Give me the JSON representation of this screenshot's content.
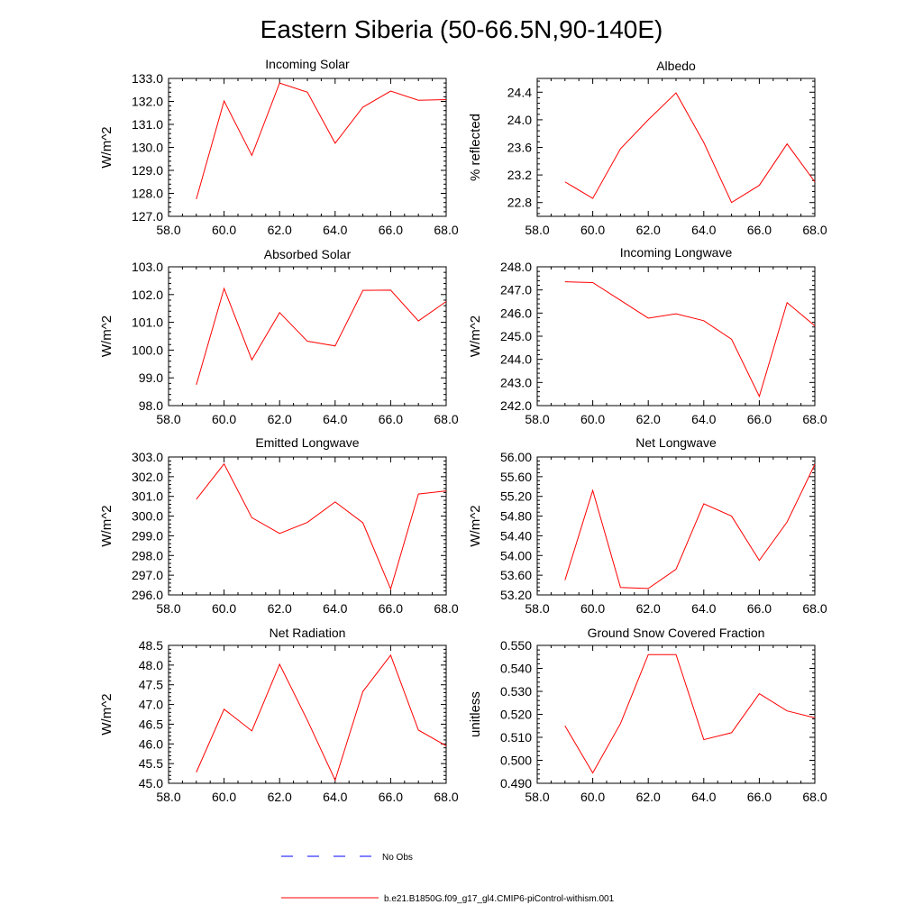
{
  "figure": {
    "title": "Eastern Siberia (50-66.5N,90-140E)"
  },
  "legend": {
    "entries": [
      {
        "label": "No Obs",
        "color": "#0000ff",
        "style": "dashed"
      },
      {
        "label": "b.e21.B1850G.f09_g17_gl4.CMIP6-piControl-withism.001",
        "color": "#ff0000",
        "style": "solid"
      }
    ]
  },
  "chart_data": [
    {
      "type": "line",
      "title": "Incoming Solar",
      "xlabel": "",
      "ylabel": "W/m^2",
      "xlim": [
        58,
        68
      ],
      "ylim": [
        127,
        133
      ],
      "xticks": [
        58,
        60,
        62,
        64,
        66,
        68
      ],
      "xtick_labels": [
        "58.0",
        "60.0",
        "62.0",
        "64.0",
        "66.0",
        "68.0"
      ],
      "yticks": [
        127,
        128,
        129,
        130,
        131,
        132,
        133
      ],
      "ytick_labels": [
        "127.0",
        "128.0",
        "129.0",
        "130.0",
        "131.0",
        "132.0",
        "133.0"
      ],
      "x": [
        59,
        60,
        61,
        62,
        63,
        64,
        65,
        66,
        67,
        68
      ],
      "series": [
        {
          "name": "b.e21.B1850G.f09_g17_gl4.CMIP6-piControl-withism.001",
          "color": "#ff0000",
          "values": [
            127.75,
            132.02,
            129.65,
            132.8,
            132.4,
            130.18,
            131.75,
            132.45,
            132.05,
            132.08
          ]
        }
      ]
    },
    {
      "type": "line",
      "title": "Albedo",
      "xlabel": "",
      "ylabel": "% reflected",
      "xlim": [
        58,
        68
      ],
      "ylim": [
        22.6,
        24.6
      ],
      "xticks": [
        58,
        60,
        62,
        64,
        66,
        68
      ],
      "xtick_labels": [
        "58.0",
        "60.0",
        "62.0",
        "64.0",
        "66.0",
        "68.0"
      ],
      "yticks": [
        22.8,
        23.2,
        23.6,
        24.0,
        24.4
      ],
      "ytick_labels": [
        "22.8",
        "23.2",
        "23.6",
        "24.0",
        "24.4"
      ],
      "x": [
        59,
        60,
        61,
        62,
        63,
        64,
        65,
        66,
        67,
        68
      ],
      "series": [
        {
          "name": "b.e21.B1850G.f09_g17_gl4.CMIP6-piControl-withism.001",
          "color": "#ff0000",
          "values": [
            23.1,
            22.86,
            23.58,
            24.0,
            24.39,
            23.67,
            22.8,
            23.05,
            23.65,
            23.1
          ]
        }
      ]
    },
    {
      "type": "line",
      "title": "Absorbed Solar",
      "xlabel": "",
      "ylabel": "W/m^2",
      "xlim": [
        58,
        68
      ],
      "ylim": [
        98,
        103
      ],
      "xticks": [
        58,
        60,
        62,
        64,
        66,
        68
      ],
      "xtick_labels": [
        "58.0",
        "60.0",
        "62.0",
        "64.0",
        "66.0",
        "68.0"
      ],
      "yticks": [
        98,
        99,
        100,
        101,
        102,
        103
      ],
      "ytick_labels": [
        "98.0",
        "99.0",
        "100.0",
        "101.0",
        "102.0",
        "103.0"
      ],
      "x": [
        59,
        60,
        61,
        62,
        63,
        64,
        65,
        66,
        67,
        68
      ],
      "series": [
        {
          "name": "b.e21.B1850G.f09_g17_gl4.CMIP6-piControl-withism.001",
          "color": "#ff0000",
          "values": [
            98.75,
            102.22,
            99.65,
            101.35,
            100.32,
            100.15,
            102.15,
            102.16,
            101.05,
            101.75
          ]
        }
      ]
    },
    {
      "type": "line",
      "title": "Incoming Longwave",
      "xlabel": "",
      "ylabel": "W/m^2",
      "xlim": [
        58,
        68
      ],
      "ylim": [
        242,
        248
      ],
      "xticks": [
        58,
        60,
        62,
        64,
        66,
        68
      ],
      "xtick_labels": [
        "58.0",
        "60.0",
        "62.0",
        "64.0",
        "66.0",
        "68.0"
      ],
      "yticks": [
        242,
        243,
        244,
        245,
        246,
        247,
        248
      ],
      "ytick_labels": [
        "242.0",
        "243.0",
        "244.0",
        "245.0",
        "246.0",
        "247.0",
        "248.0"
      ],
      "x": [
        59,
        60,
        61,
        62,
        63,
        64,
        65,
        66,
        67,
        68
      ],
      "series": [
        {
          "name": "b.e21.B1850G.f09_g17_gl4.CMIP6-piControl-withism.001",
          "color": "#ff0000",
          "values": [
            247.35,
            247.32,
            246.55,
            245.78,
            245.97,
            245.67,
            244.87,
            242.4,
            246.45,
            245.45
          ]
        }
      ]
    },
    {
      "type": "line",
      "title": "Emitted Longwave",
      "xlabel": "",
      "ylabel": "W/m^2",
      "xlim": [
        58,
        68
      ],
      "ylim": [
        296,
        303
      ],
      "xticks": [
        58,
        60,
        62,
        64,
        66,
        68
      ],
      "xtick_labels": [
        "58.0",
        "60.0",
        "62.0",
        "64.0",
        "66.0",
        "68.0"
      ],
      "yticks": [
        296,
        297,
        298,
        299,
        300,
        301,
        302,
        303
      ],
      "ytick_labels": [
        "296.0",
        "297.0",
        "298.0",
        "299.0",
        "300.0",
        "301.0",
        "302.0",
        "303.0"
      ],
      "x": [
        59,
        60,
        61,
        62,
        63,
        64,
        65,
        66,
        67,
        68
      ],
      "series": [
        {
          "name": "b.e21.B1850G.f09_g17_gl4.CMIP6-piControl-withism.001",
          "color": "#ff0000",
          "values": [
            300.85,
            302.65,
            299.92,
            299.12,
            299.68,
            300.72,
            299.66,
            296.3,
            301.12,
            301.28
          ]
        }
      ]
    },
    {
      "type": "line",
      "title": "Net Longwave",
      "xlabel": "",
      "ylabel": "W/m^2",
      "xlim": [
        58,
        68
      ],
      "ylim": [
        53.2,
        56.0
      ],
      "xticks": [
        58,
        60,
        62,
        64,
        66,
        68
      ],
      "xtick_labels": [
        "58.0",
        "60.0",
        "62.0",
        "64.0",
        "66.0",
        "68.0"
      ],
      "yticks": [
        53.2,
        53.6,
        54.0,
        54.4,
        54.8,
        55.2,
        55.6,
        56.0
      ],
      "ytick_labels": [
        "53.20",
        "53.60",
        "54.00",
        "54.40",
        "54.80",
        "55.20",
        "55.60",
        "56.00"
      ],
      "x": [
        59,
        60,
        61,
        62,
        63,
        64,
        65,
        66,
        67,
        68
      ],
      "series": [
        {
          "name": "b.e21.B1850G.f09_g17_gl4.CMIP6-piControl-withism.001",
          "color": "#ff0000",
          "values": [
            53.5,
            55.32,
            53.35,
            53.33,
            53.72,
            55.05,
            54.8,
            53.9,
            54.68,
            55.85
          ]
        }
      ]
    },
    {
      "type": "line",
      "title": "Net Radiation",
      "xlabel": "",
      "ylabel": "W/m^2",
      "xlim": [
        58,
        68
      ],
      "ylim": [
        45.0,
        48.5
      ],
      "xticks": [
        58,
        60,
        62,
        64,
        66,
        68
      ],
      "xtick_labels": [
        "58.0",
        "60.0",
        "62.0",
        "64.0",
        "66.0",
        "68.0"
      ],
      "yticks": [
        45.0,
        45.5,
        46.0,
        46.5,
        47.0,
        47.5,
        48.0,
        48.5
      ],
      "ytick_labels": [
        "45.0",
        "45.5",
        "46.0",
        "46.5",
        "47.0",
        "47.5",
        "48.0",
        "48.5"
      ],
      "x": [
        59,
        60,
        61,
        62,
        63,
        64,
        65,
        66,
        67,
        68
      ],
      "series": [
        {
          "name": "b.e21.B1850G.f09_g17_gl4.CMIP6-piControl-withism.001",
          "color": "#ff0000",
          "values": [
            45.28,
            46.88,
            46.33,
            48.02,
            46.6,
            45.08,
            47.33,
            48.25,
            46.35,
            45.95
          ]
        }
      ]
    },
    {
      "type": "line",
      "title": "Ground Snow Covered Fraction",
      "xlabel": "",
      "ylabel": "unitless",
      "xlim": [
        58,
        68
      ],
      "ylim": [
        0.49,
        0.55
      ],
      "xticks": [
        58,
        60,
        62,
        64,
        66,
        68
      ],
      "xtick_labels": [
        "58.0",
        "60.0",
        "62.0",
        "64.0",
        "66.0",
        "68.0"
      ],
      "yticks": [
        0.49,
        0.5,
        0.51,
        0.52,
        0.53,
        0.54,
        0.55
      ],
      "ytick_labels": [
        "0.490",
        "0.500",
        "0.510",
        "0.520",
        "0.530",
        "0.540",
        "0.550"
      ],
      "x": [
        59,
        60,
        61,
        62,
        63,
        64,
        65,
        66,
        67,
        68
      ],
      "series": [
        {
          "name": "b.e21.B1850G.f09_g17_gl4.CMIP6-piControl-withism.001",
          "color": "#ff0000",
          "values": [
            0.515,
            0.4945,
            0.516,
            0.546,
            0.546,
            0.509,
            0.512,
            0.529,
            0.5215,
            0.5185
          ]
        }
      ]
    }
  ]
}
